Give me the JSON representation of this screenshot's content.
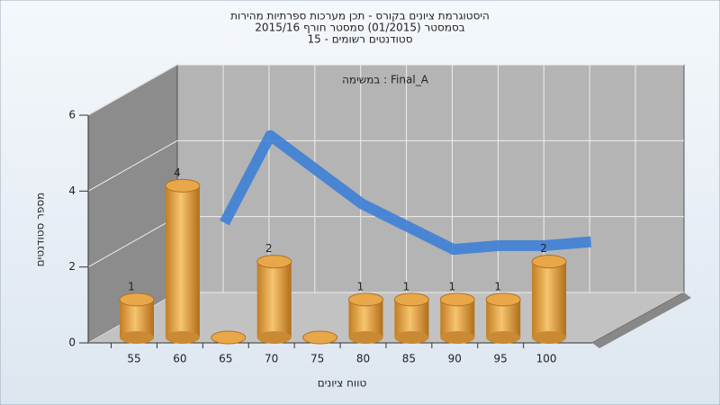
{
  "chart_data": {
    "type": "bar3d",
    "title": [
      "היסטוגרמת ציונים בקורס - תכן מערכות ספרתיות מהירות",
      "בסמסטר  (01/2015)  סמסטר חורף 2015/16",
      "15 - סטודנטים רשומים"
    ],
    "annotation": "במשימה : Final_A",
    "x_label": "טווח ציונים",
    "y_label": "מספר סטודנטים",
    "categories": [
      "55",
      "60",
      "65",
      "70",
      "75",
      "80",
      "85",
      "90",
      "95",
      "100"
    ],
    "values": [
      1,
      4,
      0,
      2,
      0,
      1,
      1,
      1,
      1,
      2
    ],
    "color": "#e8a84a",
    "curve_values": [
      null,
      2.5,
      4.8,
      3.9,
      3.0,
      2.4,
      1.8,
      1.9,
      1.9,
      2.0
    ],
    "curve_color": "#3d7fd6",
    "ylim": [
      0,
      6
    ],
    "yticks": [
      0,
      2,
      4,
      6
    ],
    "grid": true
  }
}
